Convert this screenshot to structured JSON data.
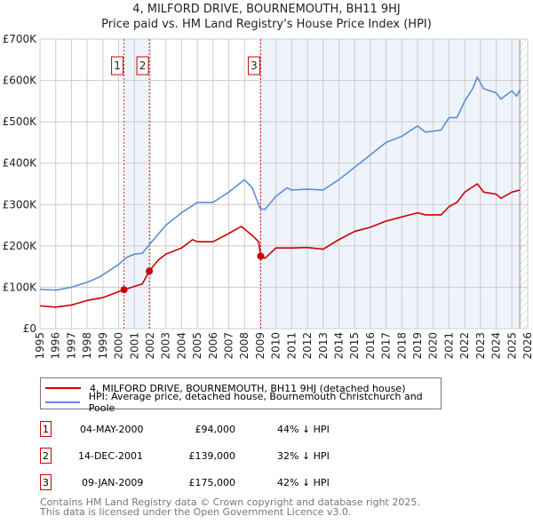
{
  "title_line1": "4, MILFORD DRIVE, BOURNEMOUTH, BH11 9HJ",
  "title_line2": "Price paid vs. HM Land Registry's House Price Index (HPI)",
  "colors": {
    "property": "#cc0000",
    "hpi": "#5b8fd4",
    "shade": "#eef3fc"
  },
  "chart_data": {
    "type": "line",
    "xlim": [
      1995,
      2026
    ],
    "ylim": [
      0,
      700000
    ],
    "yticks": [
      {
        "v": 0,
        "label": "£0"
      },
      {
        "v": 100000,
        "label": "£100K"
      },
      {
        "v": 200000,
        "label": "£200K"
      },
      {
        "v": 300000,
        "label": "£300K"
      },
      {
        "v": 400000,
        "label": "£400K"
      },
      {
        "v": 500000,
        "label": "£500K"
      },
      {
        "v": 600000,
        "label": "£600K"
      },
      {
        "v": 700000,
        "label": "£700K"
      }
    ],
    "xticks": [
      "1995",
      "1996",
      "1997",
      "1998",
      "1999",
      "2000",
      "2001",
      "2002",
      "2003",
      "2004",
      "2005",
      "2006",
      "2007",
      "2008",
      "2009",
      "2010",
      "2011",
      "2012",
      "2013",
      "2014",
      "2015",
      "2016",
      "2017",
      "2018",
      "2019",
      "2020",
      "2021",
      "2022",
      "2023",
      "2024",
      "2025",
      "2026"
    ],
    "data_end": 2025.5,
    "series": [
      {
        "name": "4, MILFORD DRIVE, BOURNEMOUTH, BH11 9HJ (detached house)",
        "color": "#cc0000",
        "x": [
          1995,
          1996,
          1997,
          1998,
          1999,
          2000.34,
          2001,
          2001.5,
          2001.95,
          2002.5,
          2003,
          2004,
          2004.7,
          2005,
          2006,
          2007,
          2007.8,
          2008.5,
          2008.9,
          2009.03,
          2009.3,
          2010,
          2011,
          2012,
          2013,
          2014,
          2015,
          2016,
          2017,
          2018,
          2019,
          2019.5,
          2020.5,
          2021,
          2021.5,
          2022,
          2022.8,
          2023.2,
          2024,
          2024.3,
          2025,
          2025.5
        ],
        "y": [
          55000,
          52000,
          57000,
          68000,
          75000,
          94000,
          102000,
          108000,
          139000,
          165000,
          180000,
          195000,
          215000,
          210000,
          210000,
          230000,
          247000,
          225000,
          210000,
          175000,
          170000,
          195000,
          195000,
          196000,
          192000,
          215000,
          235000,
          245000,
          260000,
          270000,
          280000,
          275000,
          275000,
          295000,
          305000,
          330000,
          350000,
          330000,
          325000,
          315000,
          330000,
          335000
        ]
      },
      {
        "name": "HPI: Average price, detached house, Bournemouth Christchurch and Poole",
        "color": "#5b8fd4",
        "x": [
          1995,
          1996,
          1997,
          1998,
          1998.8,
          1999,
          2000,
          2000.5,
          2001,
          2001.5,
          2002,
          2003,
          2004,
          2005,
          2006,
          2007,
          2008,
          2008.5,
          2009,
          2009.3,
          2010,
          2010.7,
          2011,
          2012,
          2013,
          2014,
          2015,
          2016,
          2017,
          2018,
          2019,
          2019.5,
          2020.5,
          2021,
          2021.5,
          2022,
          2022.5,
          2022.8,
          2023.2,
          2024,
          2024.3,
          2025,
          2025.3,
          2025.5
        ],
        "y": [
          95000,
          93000,
          100000,
          112000,
          125000,
          130000,
          155000,
          172000,
          180000,
          182000,
          205000,
          250000,
          280000,
          305000,
          305000,
          330000,
          360000,
          340000,
          290000,
          288000,
          320000,
          340000,
          335000,
          337000,
          335000,
          360000,
          390000,
          420000,
          450000,
          465000,
          490000,
          475000,
          480000,
          510000,
          510000,
          550000,
          580000,
          608000,
          580000,
          570000,
          555000,
          575000,
          562000,
          577000
        ]
      }
    ],
    "sales": [
      {
        "label": "1",
        "x": 2000.34,
        "price": 94000,
        "date": "04-MAY-2000",
        "price_label": "£94,000",
        "hpi": "44% ↓ HPI"
      },
      {
        "label": "2",
        "x": 2001.95,
        "price": 139000,
        "date": "14-DEC-2001",
        "price_label": "£139,000",
        "hpi": "32% ↓ HPI"
      },
      {
        "label": "3",
        "x": 2009.03,
        "price": 175000,
        "date": "09-JAN-2009",
        "price_label": "£175,000",
        "hpi": "42% ↓ HPI"
      }
    ]
  },
  "footer_line1": "Contains HM Land Registry data © Crown copyright and database right 2025.",
  "footer_line2": "This data is licensed under the Open Government Licence v3.0."
}
